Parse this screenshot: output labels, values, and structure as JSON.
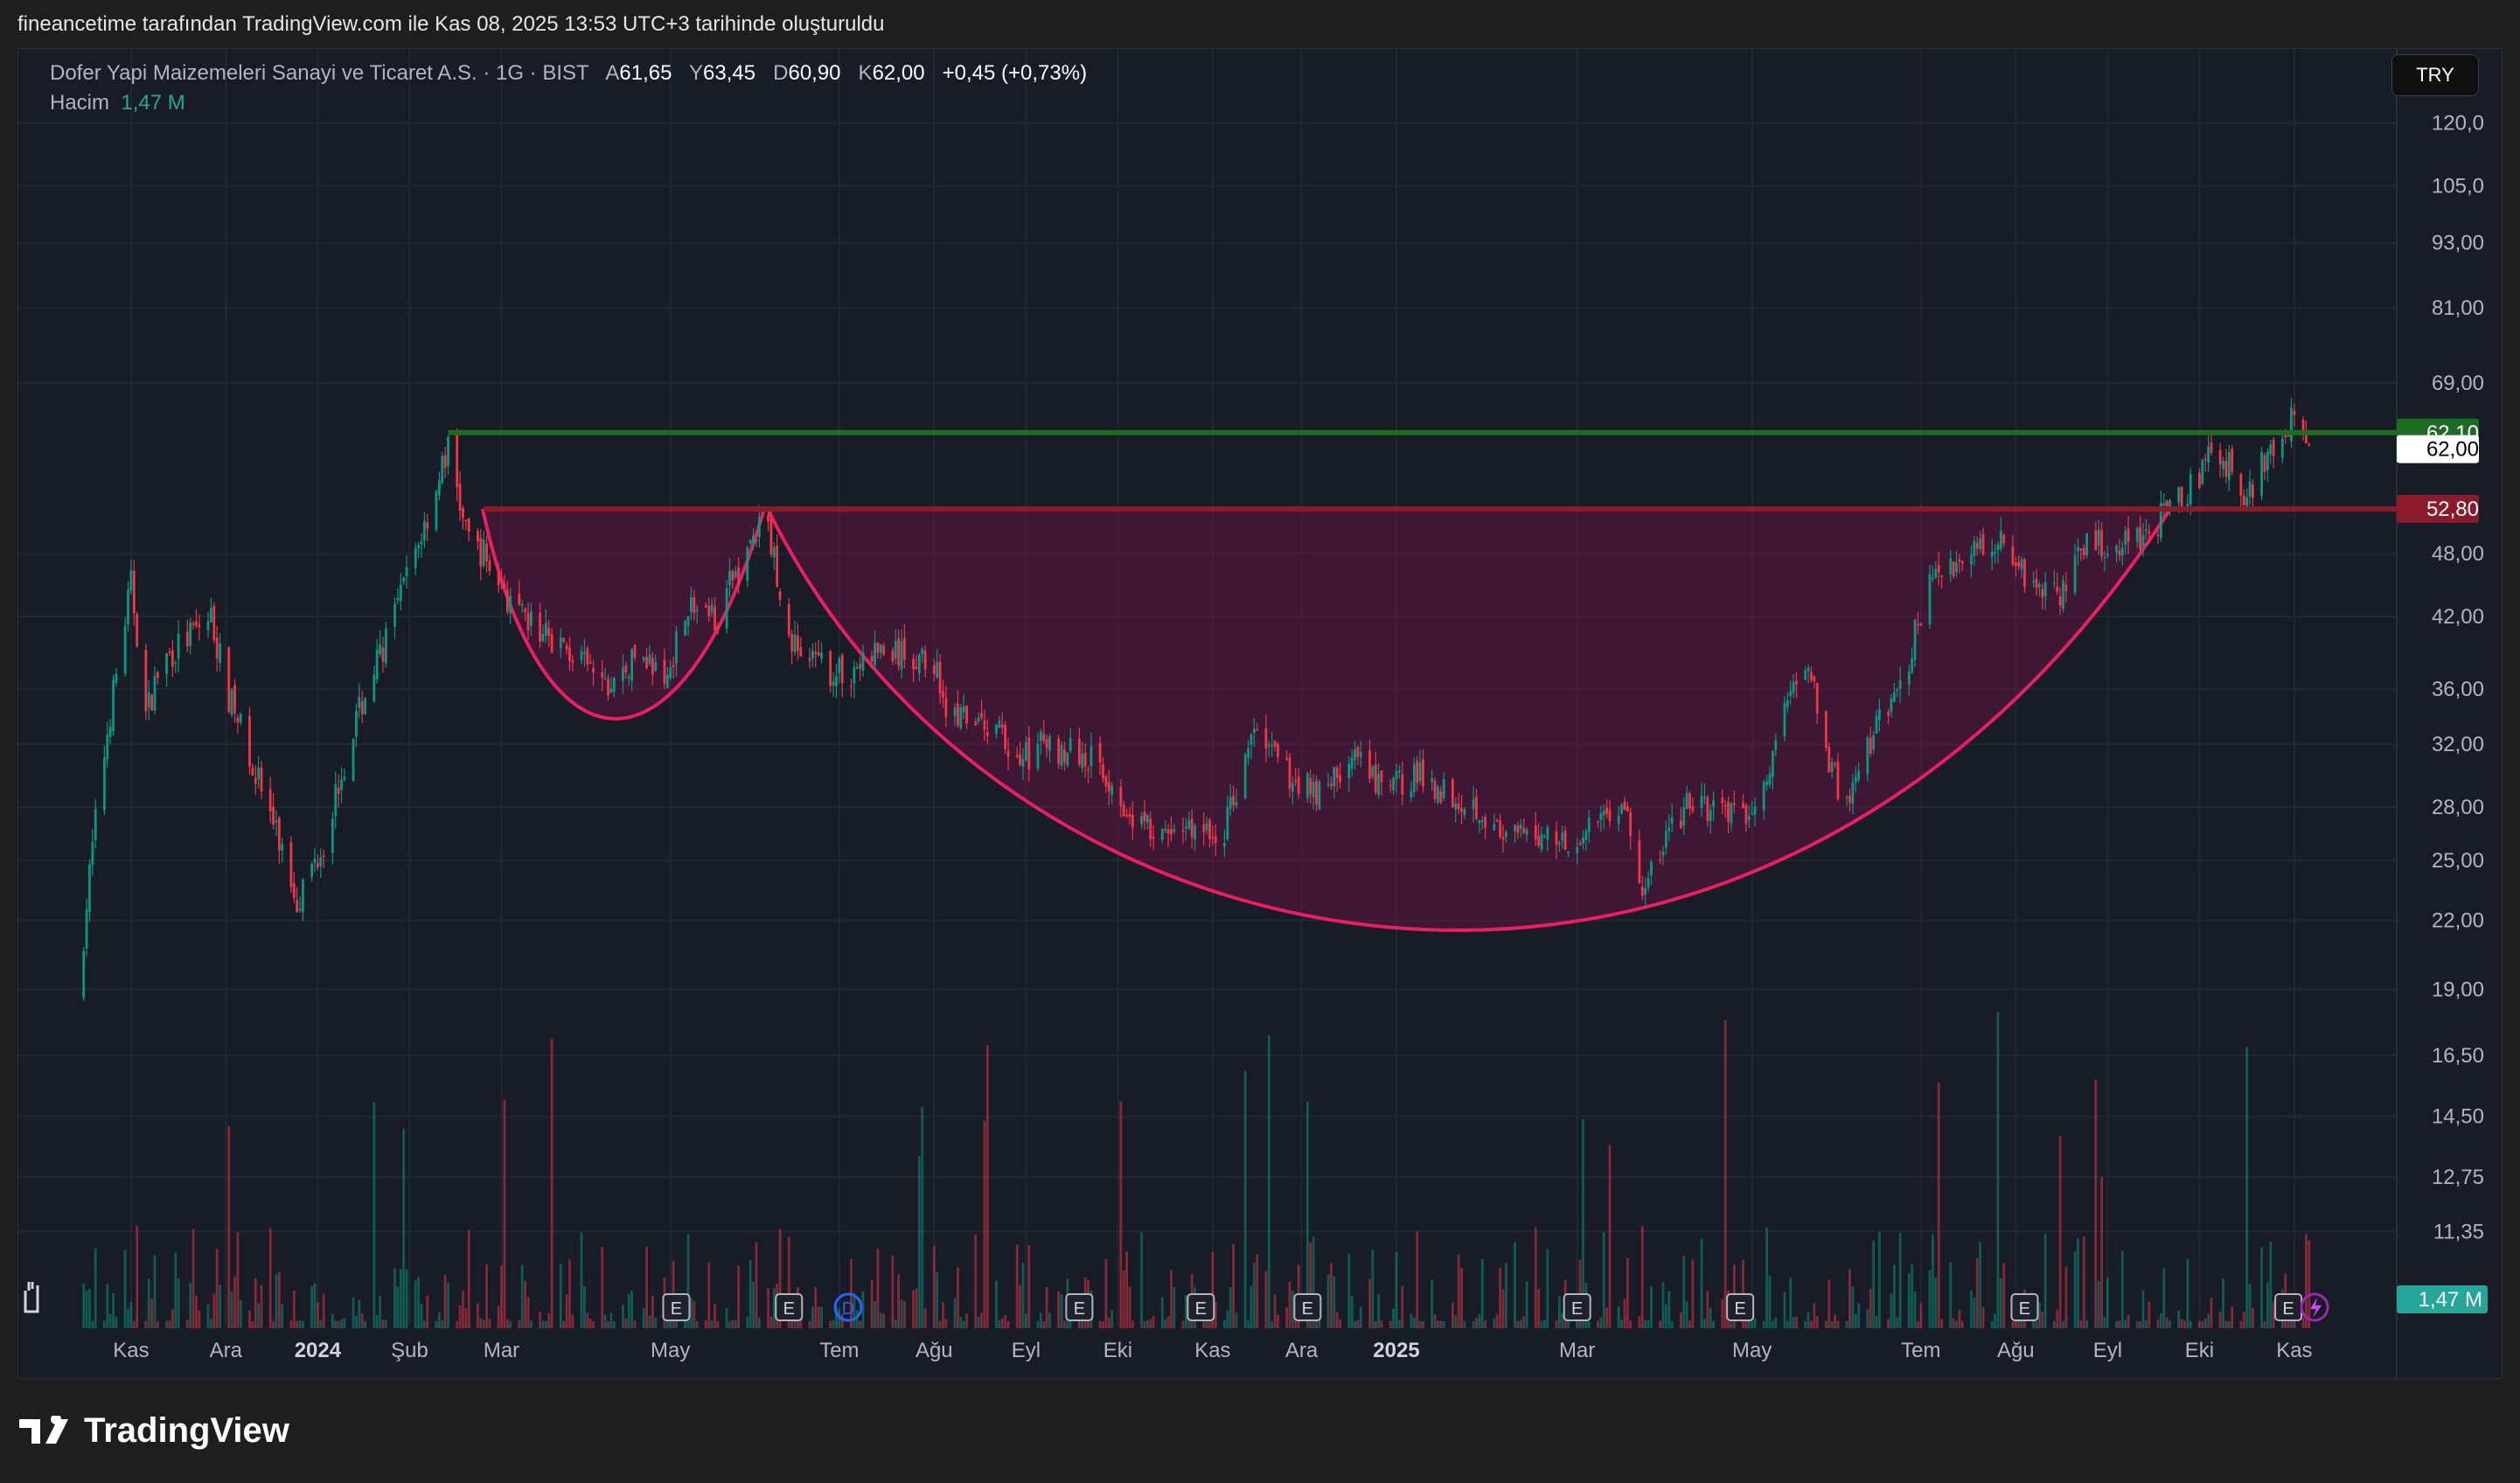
{
  "header": {
    "credit": "fineancetime tarafından TradingView.com ile Kas 08, 2025 13:53 UTC+3 tarihinde oluşturuldu"
  },
  "legend": {
    "symbol": "Dofer Yapi Maizemeleri Sanayi ve Ticaret A.S. · 1G · BIST",
    "o_label": "A",
    "o": "61,65",
    "h_label": "Y",
    "h": "63,45",
    "l_label": "D",
    "l": "60,90",
    "c_label": "K",
    "c": "62,00",
    "change": "+0,45 (+0,73%)",
    "volume_label": "Hacim",
    "volume": "1,47 M"
  },
  "currency": "TRY",
  "brand": "TradingView",
  "colors": {
    "up": "#089981",
    "down": "#f23645",
    "resistance": "#1e6b24",
    "support": "#8b1a2b",
    "cup": "#e91e63",
    "volume_badge": "#26a69a"
  },
  "chart_data": {
    "type": "candlestick",
    "title": "Dofer Yapi Maizemeleri Sanayi ve Ticaret A.S. · 1G · BIST",
    "yscale": "log",
    "ylim": [
      10,
      125
    ],
    "price_ticks": [
      {
        "v": 120,
        "t": "120,0"
      },
      {
        "v": 105,
        "t": "105,0"
      },
      {
        "v": 93,
        "t": "93,00"
      },
      {
        "v": 81,
        "t": "81,00"
      },
      {
        "v": 69,
        "t": "69,00"
      },
      {
        "v": 48,
        "t": "48,00"
      },
      {
        "v": 42,
        "t": "42,00"
      },
      {
        "v": 36,
        "t": "36,00"
      },
      {
        "v": 32,
        "t": "32,00"
      },
      {
        "v": 28,
        "t": "28,00"
      },
      {
        "v": 25,
        "t": "25,00"
      },
      {
        "v": 22,
        "t": "22,00"
      },
      {
        "v": 19,
        "t": "19,00"
      },
      {
        "v": 16.5,
        "t": "16,50"
      },
      {
        "v": 14.5,
        "t": "14,50"
      },
      {
        "v": 12.75,
        "t": "12,75"
      },
      {
        "v": 11.35,
        "t": "11,35"
      }
    ],
    "time_axis_day0": "2023-11-01",
    "time_ticks": [
      {
        "d": 0,
        "t": "Kas"
      },
      {
        "d": 32,
        "t": "Ara"
      },
      {
        "d": 63,
        "t": "2024",
        "bold": true
      },
      {
        "d": 94,
        "t": "Şub"
      },
      {
        "d": 125,
        "t": "Mar"
      },
      {
        "d": 182,
        "t": "May"
      },
      {
        "d": 239,
        "t": "Tem"
      },
      {
        "d": 271,
        "t": "Ağu"
      },
      {
        "d": 302,
        "t": "Eyl"
      },
      {
        "d": 333,
        "t": "Eki"
      },
      {
        "d": 365,
        "t": "Kas"
      },
      {
        "d": 395,
        "t": "Ara"
      },
      {
        "d": 427,
        "t": "2025",
        "bold": true
      },
      {
        "d": 488,
        "t": "Mar"
      },
      {
        "d": 547,
        "t": "May"
      },
      {
        "d": 604,
        "t": "Tem"
      },
      {
        "d": 636,
        "t": "Ağu"
      },
      {
        "d": 667,
        "t": "Eyl"
      },
      {
        "d": 698,
        "t": "Eki"
      },
      {
        "d": 730,
        "t": "Kas"
      }
    ],
    "close_keypoints": [
      [
        -18,
        18.5
      ],
      [
        -3,
        40
      ],
      [
        0,
        45
      ],
      [
        5,
        34
      ],
      [
        10,
        38
      ],
      [
        27,
        42
      ],
      [
        32,
        36
      ],
      [
        46,
        28
      ],
      [
        56,
        23
      ],
      [
        65,
        26
      ],
      [
        75,
        33
      ],
      [
        89,
        42
      ],
      [
        100,
        52
      ],
      [
        107,
        60
      ],
      [
        113,
        50
      ],
      [
        119,
        48
      ],
      [
        130,
        42
      ],
      [
        143,
        40
      ],
      [
        161,
        36
      ],
      [
        173,
        39
      ],
      [
        180,
        36
      ],
      [
        187,
        43
      ],
      [
        197,
        42
      ],
      [
        206,
        47
      ],
      [
        214,
        52
      ],
      [
        222,
        40
      ],
      [
        230,
        38
      ],
      [
        241,
        37
      ],
      [
        252,
        39
      ],
      [
        271,
        38
      ],
      [
        276,
        34
      ],
      [
        292,
        33
      ],
      [
        299,
        31
      ],
      [
        309,
        32
      ],
      [
        325,
        31
      ],
      [
        336,
        28
      ],
      [
        347,
        26
      ],
      [
        357,
        27
      ],
      [
        368,
        26
      ],
      [
        379,
        33
      ],
      [
        390,
        30
      ],
      [
        401,
        29
      ],
      [
        413,
        31
      ],
      [
        422,
        29
      ],
      [
        433,
        30
      ],
      [
        444,
        29
      ],
      [
        455,
        28
      ],
      [
        463,
        26
      ],
      [
        477,
        26.5
      ],
      [
        490,
        26
      ],
      [
        498,
        28
      ],
      [
        504,
        28
      ],
      [
        510,
        23
      ],
      [
        517,
        26
      ],
      [
        525,
        28
      ],
      [
        536,
        28
      ],
      [
        544,
        27
      ],
      [
        553,
        30
      ],
      [
        558,
        35
      ],
      [
        566,
        38
      ],
      [
        574,
        30
      ],
      [
        580,
        28
      ],
      [
        588,
        33
      ],
      [
        596,
        35
      ],
      [
        607,
        45
      ],
      [
        618,
        48
      ],
      [
        631,
        50
      ],
      [
        639,
        46
      ],
      [
        650,
        44
      ],
      [
        661,
        49
      ],
      [
        672,
        49
      ],
      [
        683,
        51
      ],
      [
        694,
        55
      ],
      [
        702,
        59
      ],
      [
        708,
        58
      ],
      [
        713,
        53
      ],
      [
        721,
        60
      ],
      [
        730,
        64
      ],
      [
        735,
        62
      ]
    ],
    "levels": [
      {
        "name": "resistance",
        "value": 62.1,
        "label": "62,10",
        "from_day": 107
      },
      {
        "name": "support",
        "value": 52.8,
        "label": "52,80",
        "from_day": 119
      }
    ],
    "last_price": {
      "value": 62.0,
      "label": "62,00"
    },
    "last_volume": "1,47 M",
    "patterns": [
      {
        "name": "handle-cup",
        "start_day": 119,
        "end_day": 214
      },
      {
        "name": "cup",
        "start_day": 214,
        "end_day": 689,
        "bottom_price": 21
      }
    ],
    "events": [
      {
        "d": 184,
        "t": "E"
      },
      {
        "d": 222,
        "t": "E"
      },
      {
        "d": 242,
        "t": "D"
      },
      {
        "d": 320,
        "t": "E"
      },
      {
        "d": 361,
        "t": "E"
      },
      {
        "d": 397,
        "t": "E"
      },
      {
        "d": 488,
        "t": "E"
      },
      {
        "d": 543,
        "t": "E"
      },
      {
        "d": 639,
        "t": "E"
      },
      {
        "d": 728,
        "t": "E"
      }
    ]
  }
}
